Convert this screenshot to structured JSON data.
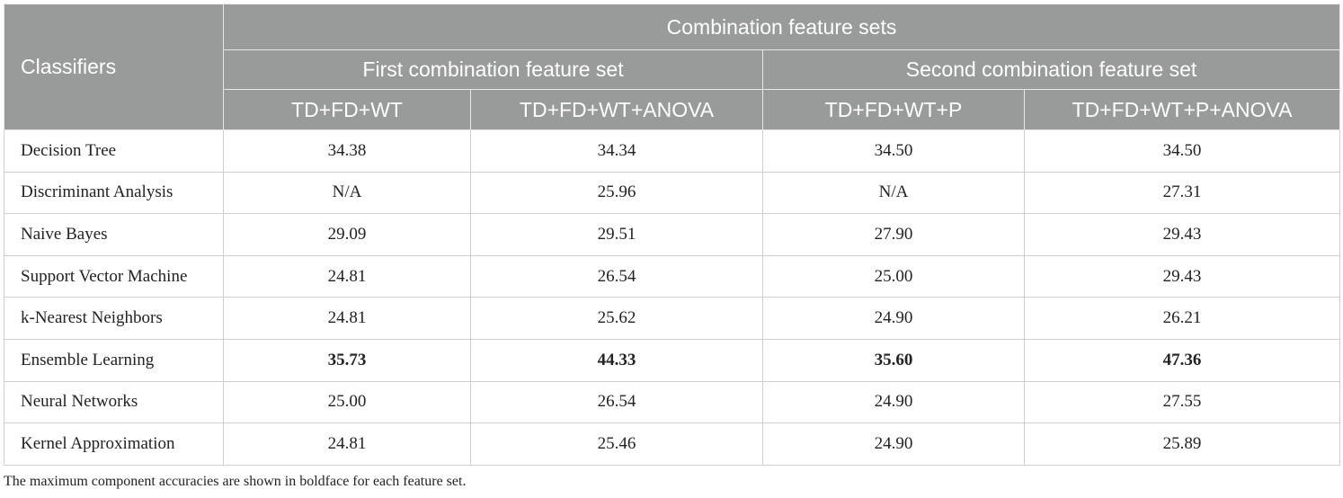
{
  "header": {
    "classifiers": "Classifiers",
    "group": "Combination feature sets",
    "first_set": "First combination feature set",
    "second_set": "Second combination feature set",
    "columns": [
      "TD+FD+WT",
      "TD+FD+WT+ANOVA",
      "TD+FD+WT+P",
      "TD+FD+WT+P+ANOVA"
    ]
  },
  "rows": [
    {
      "name": "Decision Tree",
      "values": [
        "34.38",
        "34.34",
        "34.50",
        "34.50"
      ]
    },
    {
      "name": "Discriminant Analysis",
      "values": [
        "N/A",
        "25.96",
        "N/A",
        "27.31"
      ]
    },
    {
      "name": "Naive Bayes",
      "values": [
        "29.09",
        "29.51",
        "27.90",
        "29.43"
      ]
    },
    {
      "name": "Support Vector Machine",
      "values": [
        "24.81",
        "26.54",
        "25.00",
        "29.43"
      ]
    },
    {
      "name": "k-Nearest Neighbors",
      "values": [
        "24.81",
        "25.62",
        "24.90",
        "26.21"
      ]
    },
    {
      "name": "Ensemble Learning",
      "values": [
        "35.73",
        "44.33",
        "35.60",
        "47.36"
      ]
    },
    {
      "name": "Neural Networks",
      "values": [
        "25.00",
        "26.54",
        "24.90",
        "27.55"
      ]
    },
    {
      "name": "Kernel Approximation",
      "values": [
        "24.81",
        "25.46",
        "24.90",
        "25.89"
      ]
    }
  ],
  "footnote": "The maximum component accuracies are shown in boldface for each feature set.",
  "colors": {
    "header_bg": "#999b9a",
    "header_text": "#ffffff"
  }
}
